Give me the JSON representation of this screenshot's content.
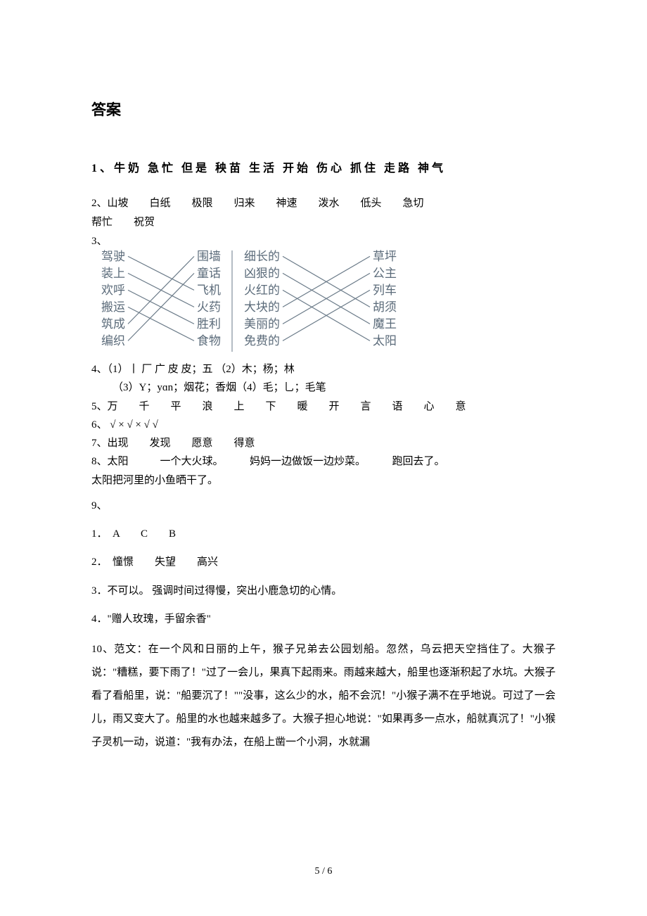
{
  "title": "答案",
  "q1": "1、牛奶  急忙  但是  秧苗  生活 开始  伤心  抓住  走路  神气",
  "q2_line1": "2、山坡　　白纸　　极限　　归来　　神速　　泼水　　低头　　急切　　",
  "q2_line2": "帮忙　　祝贺",
  "q3_label": "3、",
  "matching": {
    "left_group": {
      "left": [
        "驾驶",
        "装上",
        "欢呼",
        "搬运",
        "筑成",
        "编织"
      ],
      "right": [
        "围墙",
        "童话",
        "飞机",
        "火药",
        "胜利",
        "食物"
      ],
      "pairs": [
        [
          0,
          2
        ],
        [
          1,
          3
        ],
        [
          2,
          4
        ],
        [
          3,
          5
        ],
        [
          4,
          0
        ],
        [
          5,
          1
        ]
      ]
    },
    "right_group": {
      "left": [
        "细长的",
        "凶狠的",
        "火红的",
        "大块的",
        "美丽的",
        "免费的"
      ],
      "right": [
        "草坪",
        "公主",
        "列车",
        "胡须",
        "魔王",
        "太阳"
      ],
      "pairs": [
        [
          0,
          3
        ],
        [
          1,
          4
        ],
        [
          2,
          5
        ],
        [
          3,
          0
        ],
        [
          4,
          1
        ],
        [
          5,
          2
        ]
      ]
    },
    "text_color": "#5b6b7a",
    "line_color": "#6a7a88",
    "font_size": 17
  },
  "q4_l1": "4、（1）丨 厂 广 皮 皮；五 （2）木；杨；林",
  "q4_l2": "（3）Y；yɑn；烟花；香烟（4）毛；乚；毛笔",
  "q5": "5、万　　千　　平　　浪　　上　　下　　暖　　开　　言　　语　　心　　意",
  "q6": "6、 √  ×  √  ×  √  √",
  "q7": "7、出现　　发现　　愿意　　得意",
  "q8_l1": "8、太阳　　　一个大火球。　　　妈妈一边做饭一边炒菜。　　　跑回去了。",
  "q8_l2": "太阳把河里的小鱼晒干了。",
  "q9_label": "9、",
  "q9_1": "1．　A　　C　　B",
  "q9_2": "2．　憧憬　　失望　　高兴",
  "q9_3": "3．不可以。 强调时间过得慢，突出小鹿急切的心情。",
  "q9_4": "4．\"赠人玫瑰，手留余香\"",
  "q10": "10、范文：在一个风和日丽的上午，猴子兄弟去公园划船。忽然，乌云把天空挡住了。大猴子说：\"糟糕，要下雨了！\"过了一会儿，果真下起雨来。雨越来越大，船里也逐渐积起了水坑。大猴子看了看船里，说：\"船要沉了！\"\"没事，这么少的水，船不会沉！\"小猴子满不在乎地说。可过了一会儿，雨又变大了。船里的水也越来越多了。大猴子担心地说：\"如果再多一点水，船就真沉了！\"小猴子灵机一动，说道：\"我有办法，在船上凿一个小洞，水就漏",
  "page_num": "5 / 6"
}
